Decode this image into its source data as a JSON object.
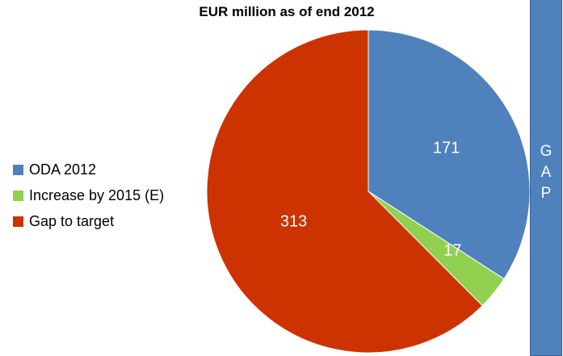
{
  "chart_data": {
    "type": "pie",
    "title": "EUR million as of end 2012",
    "slices": [
      {
        "label": "ODA 2012",
        "value": 171,
        "color": "#4f81bd"
      },
      {
        "label": "Increase by 2015 (E)",
        "value": 17,
        "color": "#92d050"
      },
      {
        "label": "Gap to target",
        "value": 313,
        "color": "#cc3300"
      }
    ],
    "legend_position": "left"
  },
  "gap_bar": {
    "letters": [
      "G",
      "A",
      "P"
    ],
    "color": "#4f81bd"
  }
}
